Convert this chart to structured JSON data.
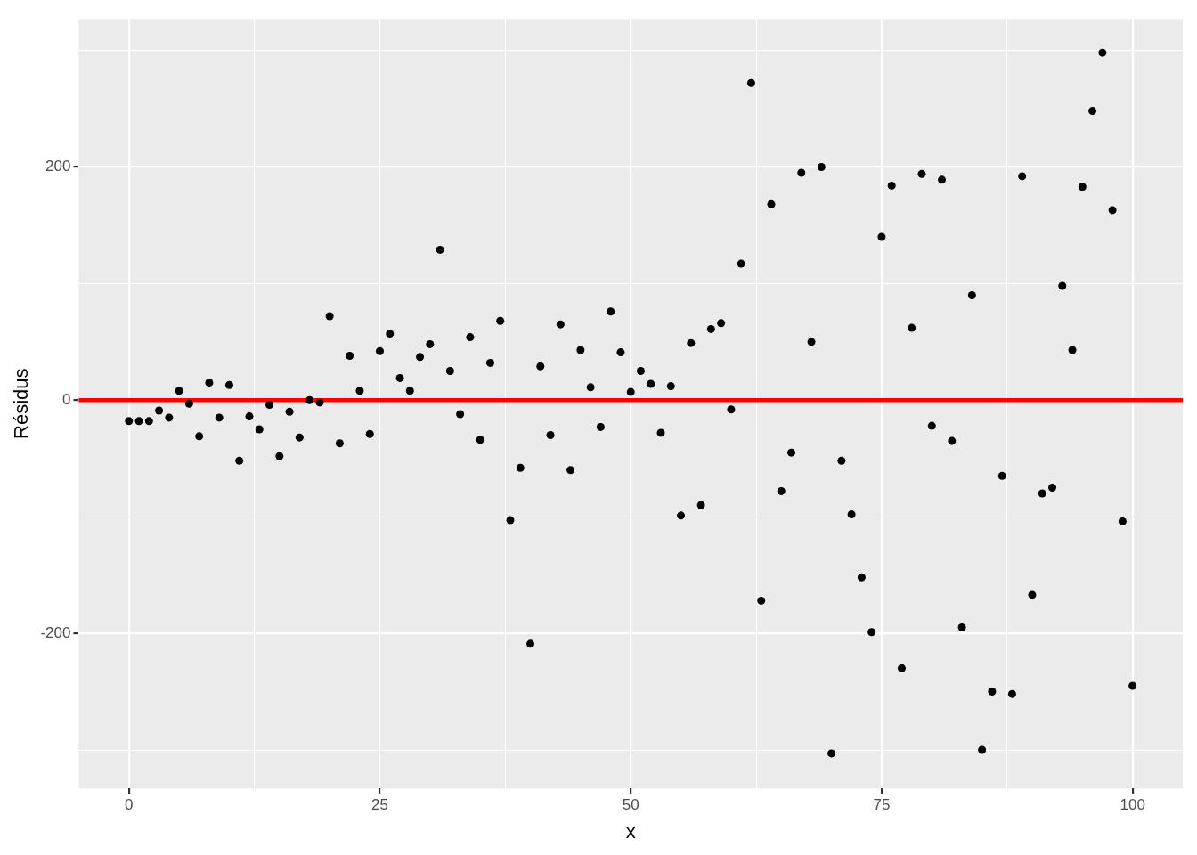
{
  "chart_data": {
    "type": "scatter",
    "xlabel": "x",
    "ylabel": "Résidus",
    "x": [
      0,
      1,
      2,
      3,
      4,
      5,
      6,
      7,
      8,
      9,
      10,
      11,
      12,
      13,
      14,
      15,
      16,
      17,
      18,
      19,
      20,
      21,
      22,
      23,
      24,
      25,
      26,
      27,
      28,
      29,
      30,
      31,
      32,
      33,
      34,
      35,
      36,
      37,
      38,
      39,
      40,
      41,
      42,
      43,
      44,
      45,
      46,
      47,
      48,
      49,
      50,
      51,
      52,
      53,
      54,
      55,
      56,
      57,
      58,
      59,
      60,
      61,
      62,
      63,
      64,
      65,
      66,
      67,
      68,
      69,
      70,
      71,
      72,
      73,
      74,
      75,
      76,
      77,
      78,
      79,
      80,
      81,
      82,
      83,
      84,
      85,
      86,
      87,
      88,
      89,
      90,
      91,
      92,
      93,
      94,
      95,
      96,
      97,
      98,
      99,
      100
    ],
    "series": [
      {
        "color": "#000000",
        "values": [
          -18,
          -18,
          -18,
          -9,
          -15,
          8,
          -3,
          -31,
          15,
          -15,
          13,
          -52,
          -14,
          -25,
          -4,
          -48,
          -10,
          -32,
          0,
          -2,
          72,
          -37,
          38,
          8,
          -29,
          42,
          57,
          19,
          8,
          37,
          48,
          129,
          25,
          -12,
          54,
          -34,
          32,
          68,
          -103,
          -58,
          -209,
          29,
          -30,
          65,
          -60,
          43,
          11,
          -23,
          76,
          41,
          7,
          25,
          14,
          -28,
          12,
          -99,
          49,
          -90,
          61,
          66,
          -8,
          117,
          272,
          -172,
          168,
          -78,
          -45,
          195,
          50,
          200,
          -303,
          -52,
          -98,
          -152,
          -199,
          140,
          184,
          -230,
          62,
          194,
          -22,
          189,
          -35,
          -195,
          90,
          -300,
          -250,
          -65,
          -252,
          192,
          -167,
          -80,
          -75,
          98,
          43,
          183,
          248,
          298,
          163,
          -104,
          -245
        ]
      }
    ],
    "xlim": [
      -5,
      105
    ],
    "ylim": [
      -333,
      327
    ],
    "xticks": [
      0,
      {
        "value": 12.5,
        "label": null
      },
      25,
      {
        "value": 37.5,
        "label": null
      },
      50,
      {
        "value": 62.5,
        "label": null
      },
      75,
      {
        "value": 87.5,
        "label": null
      },
      100
    ],
    "yticks": [
      {
        "value": -300,
        "label": null
      },
      -200,
      {
        "value": -100,
        "label": null
      },
      0,
      {
        "value": 100,
        "label": null
      },
      200,
      {
        "value": 300,
        "label": null
      }
    ],
    "ref_lines": [
      {
        "axis": "y",
        "value": 0,
        "color": "#ff0000"
      }
    ],
    "grid": true,
    "legend": false,
    "marker": "circle"
  }
}
